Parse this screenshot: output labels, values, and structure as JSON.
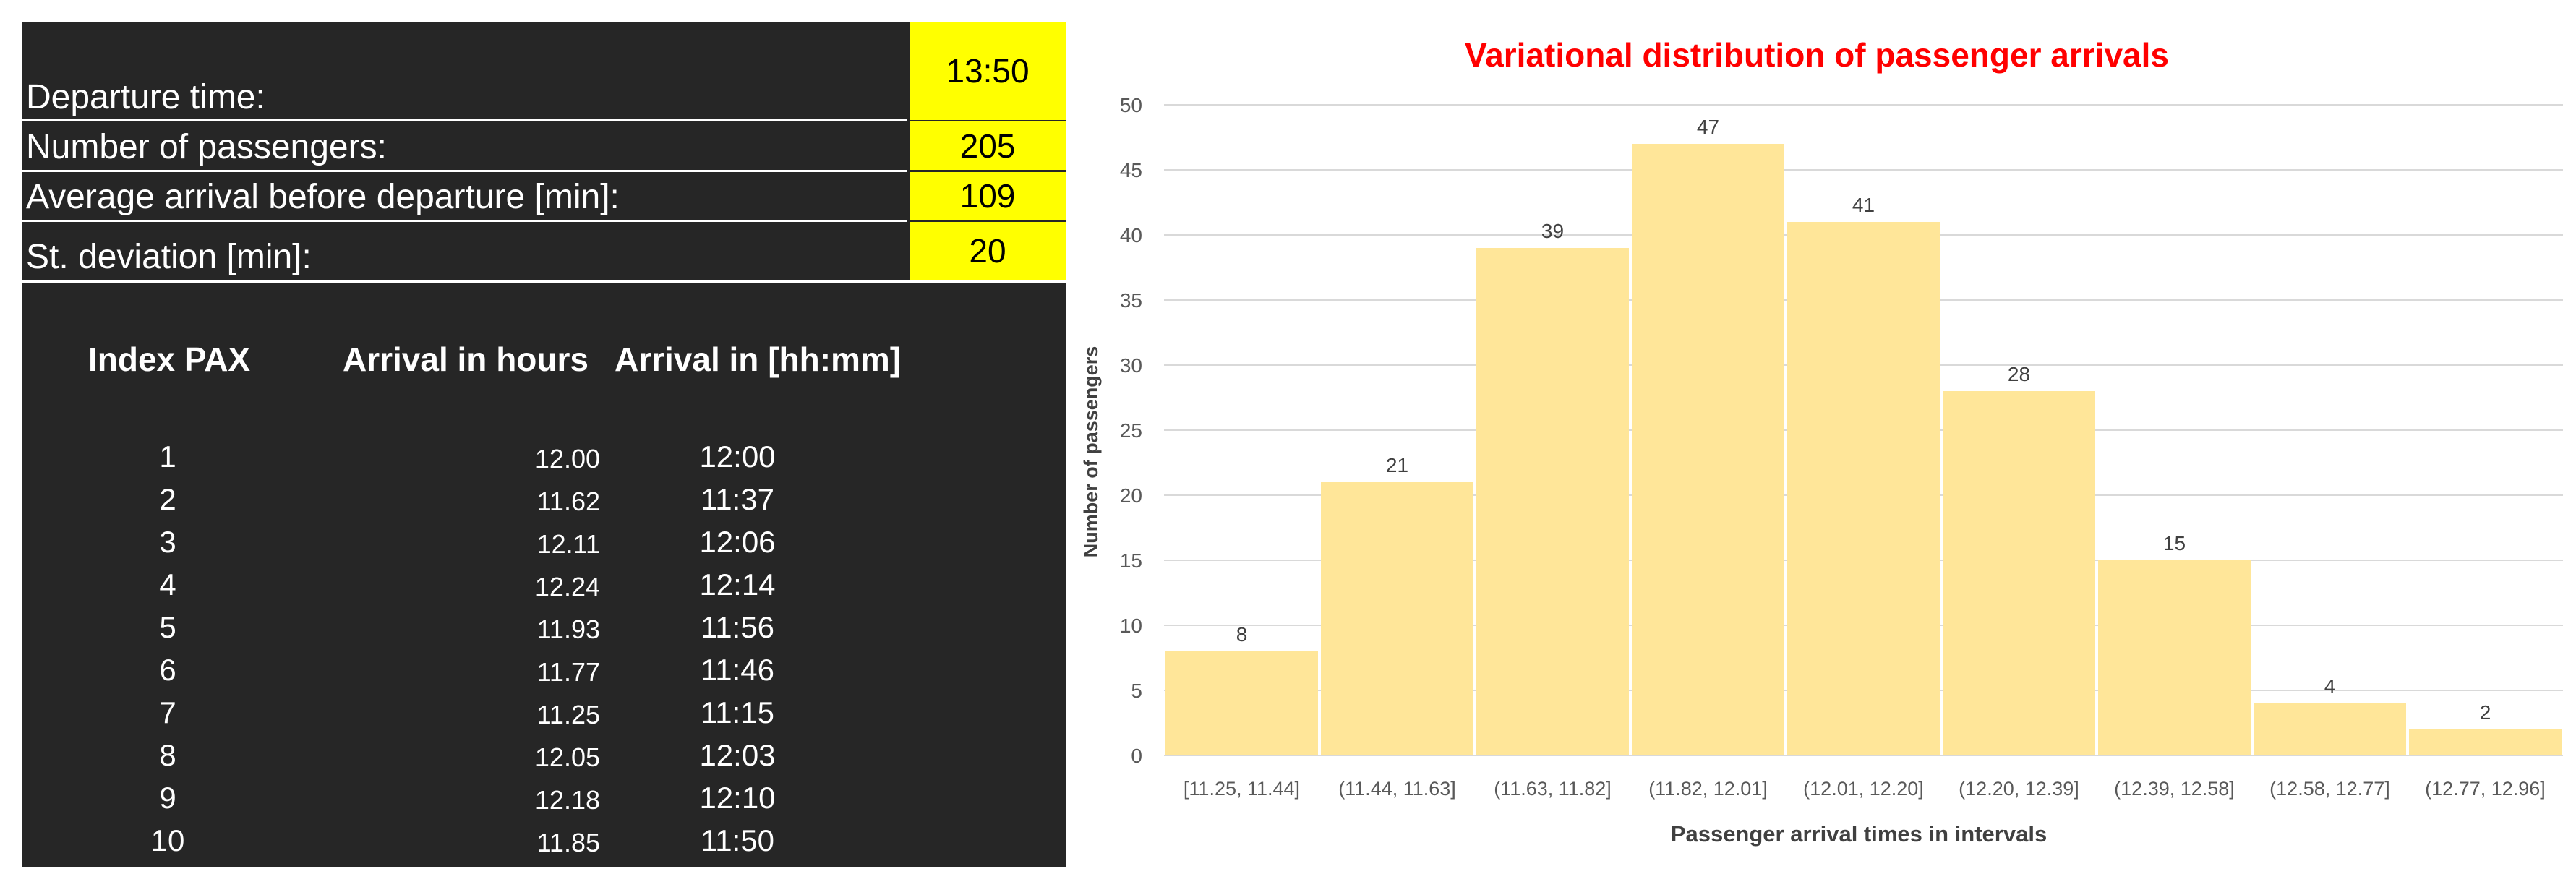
{
  "parameters": [
    {
      "label": "Departure time:",
      "value": "13:50"
    },
    {
      "label": "Number of passengers:",
      "value": "205"
    },
    {
      "label": "Average arrival before departure [min]:",
      "value": "109"
    },
    {
      "label": "St. deviation [min]:",
      "value": "20"
    }
  ],
  "table": {
    "headers": [
      "Index PAX",
      "Arrival in hours",
      "Arrival in [hh:mm]"
    ],
    "rows": [
      [
        "1",
        "12.00",
        "12:00"
      ],
      [
        "2",
        "11.62",
        "11:37"
      ],
      [
        "3",
        "12.11",
        "12:06"
      ],
      [
        "4",
        "12.24",
        "12:14"
      ],
      [
        "5",
        "11.93",
        "11:56"
      ],
      [
        "6",
        "11.77",
        "11:46"
      ],
      [
        "7",
        "11.25",
        "11:15"
      ],
      [
        "8",
        "12.05",
        "12:03"
      ],
      [
        "9",
        "12.18",
        "12:10"
      ],
      [
        "10",
        "11.85",
        "11:50"
      ]
    ]
  },
  "colors": {
    "sheet_bg": "#262626",
    "highlight": "#ffff00",
    "bar_fill": "#ffe699",
    "title": "#ff0000",
    "grid": "#d9d9d9"
  },
  "chart_data": {
    "type": "bar",
    "title": "Variational distribution of passenger arrivals",
    "xlabel": "Passenger arrival times in intervals",
    "ylabel": "Number of passengers",
    "categories": [
      "[11.25, 11.44]",
      "(11.44, 11.63]",
      "(11.63, 11.82]",
      "(11.82, 12.01]",
      "(12.01, 12.20]",
      "(12.20, 12.39]",
      "(12.39, 12.58]",
      "(12.58, 12.77]",
      "(12.77, 12.96]"
    ],
    "values": [
      8,
      21,
      39,
      47,
      41,
      28,
      15,
      4,
      2
    ],
    "ylim": [
      0,
      50
    ],
    "yticks": [
      0,
      5,
      10,
      15,
      20,
      25,
      30,
      35,
      40,
      45,
      50
    ],
    "grid": true,
    "legend": "none",
    "data_labels": true
  }
}
